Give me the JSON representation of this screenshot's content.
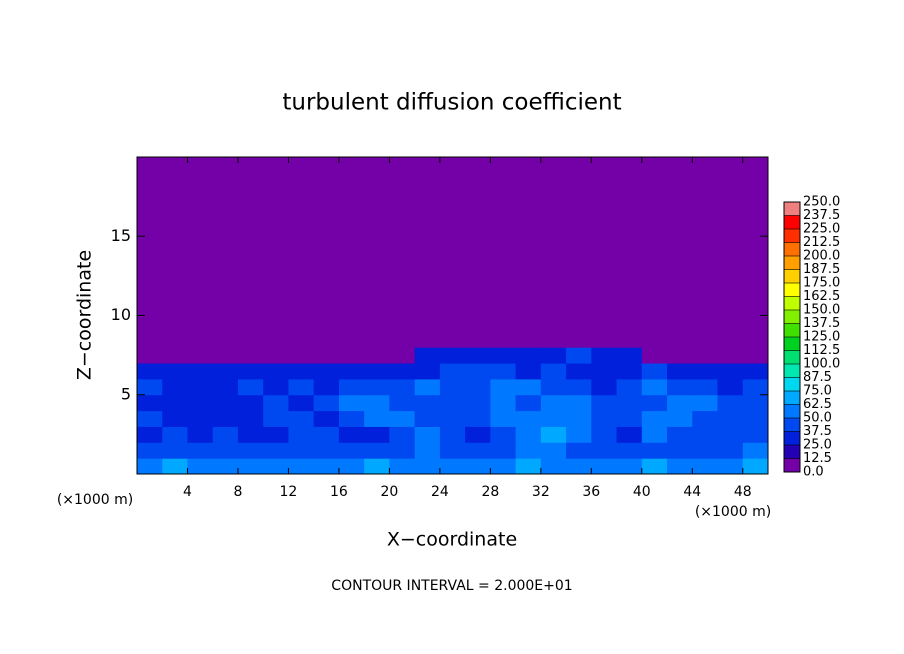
{
  "chart_data": {
    "type": "heatmap",
    "title": "turbulent diffusion coefficient",
    "x_label": "X−coordinate",
    "y_label": "Z−coordinate",
    "x_unit_left": "(×1000 m)",
    "x_unit_right": "(×1000 m)",
    "footer": "CONTOUR INTERVAL = 2.000E+01",
    "xlim": [
      0,
      50
    ],
    "ylim": [
      0,
      20
    ],
    "xticks": [
      4,
      8,
      12,
      16,
      20,
      24,
      28,
      32,
      36,
      40,
      44,
      48
    ],
    "yticks": [
      5,
      10,
      15
    ],
    "x_edges": [
      0,
      2,
      4,
      6,
      8,
      10,
      12,
      14,
      16,
      18,
      20,
      22,
      24,
      26,
      28,
      30,
      32,
      34,
      36,
      38,
      40,
      42,
      44,
      46,
      48,
      50
    ],
    "z_edges": [
      0,
      1,
      2,
      3,
      4,
      5,
      6,
      7,
      8,
      20
    ],
    "z": [
      [
        60,
        65,
        60,
        60,
        55,
        60,
        60,
        55,
        60,
        65,
        60,
        60,
        55,
        60,
        60,
        65,
        60,
        55,
        60,
        60,
        65,
        60,
        60,
        60,
        65
      ],
      [
        40,
        45,
        40,
        45,
        40,
        45,
        45,
        40,
        45,
        40,
        45,
        50,
        45,
        40,
        45,
        50,
        55,
        45,
        45,
        40,
        45,
        45,
        40,
        45,
        50
      ],
      [
        35,
        40,
        35,
        40,
        30,
        35,
        40,
        45,
        35,
        35,
        45,
        50,
        40,
        35,
        45,
        60,
        65,
        55,
        40,
        35,
        50,
        45,
        40,
        45,
        45
      ],
      [
        40,
        35,
        30,
        35,
        35,
        40,
        45,
        35,
        45,
        50,
        55,
        45,
        40,
        40,
        50,
        55,
        60,
        60,
        45,
        40,
        55,
        50,
        40,
        40,
        45
      ],
      [
        35,
        30,
        35,
        30,
        35,
        40,
        35,
        45,
        50,
        55,
        45,
        40,
        45,
        40,
        50,
        45,
        55,
        50,
        40,
        40,
        45,
        55,
        50,
        40,
        40
      ],
      [
        40,
        35,
        30,
        35,
        40,
        35,
        40,
        35,
        45,
        40,
        45,
        50,
        45,
        40,
        50,
        55,
        45,
        40,
        35,
        40,
        50,
        45,
        40,
        35,
        40
      ],
      [
        35,
        30,
        35,
        30,
        35,
        30,
        35,
        30,
        35,
        30,
        35,
        35,
        40,
        45,
        40,
        35,
        40,
        35,
        30,
        35,
        40,
        35,
        30,
        35,
        30
      ],
      [
        0,
        0,
        0,
        0,
        0,
        0,
        0,
        0,
        0,
        0,
        0,
        30,
        35,
        35,
        30,
        35,
        35,
        40,
        35,
        30,
        0,
        0,
        0,
        0,
        0
      ],
      [
        0,
        0,
        0,
        0,
        0,
        0,
        0,
        0,
        0,
        0,
        0,
        0,
        0,
        0,
        0,
        0,
        0,
        0,
        0,
        0,
        0,
        0,
        0,
        0,
        0
      ]
    ],
    "colorbar_ticks": [
      {
        "value": 0,
        "label": "0.0"
      },
      {
        "value": 12.5,
        "label": "12.5"
      },
      {
        "value": 25,
        "label": "25.0"
      },
      {
        "value": 37.5,
        "label": "37.5"
      },
      {
        "value": 50,
        "label": "50.0"
      },
      {
        "value": 62.5,
        "label": "62.5"
      },
      {
        "value": 75,
        "label": "75.0"
      },
      {
        "value": 87.5,
        "label": "87.5"
      },
      {
        "value": 100,
        "label": "100.0"
      },
      {
        "value": 112.5,
        "label": "112.5"
      },
      {
        "value": 125,
        "label": "125.0"
      },
      {
        "value": 137.5,
        "label": "137.5"
      },
      {
        "value": 150,
        "label": "150.0"
      },
      {
        "value": 162.5,
        "label": "162.5"
      },
      {
        "value": 175,
        "label": "175.0"
      },
      {
        "value": 187.5,
        "label": "187.5"
      },
      {
        "value": 200,
        "label": "200.0"
      },
      {
        "value": 212.5,
        "label": "212.5"
      },
      {
        "value": 225,
        "label": "225.0"
      },
      {
        "value": 237.5,
        "label": "237.5"
      },
      {
        "value": 250,
        "label": "250.0"
      }
    ],
    "colors": [
      "#7400a8",
      "#2400b4",
      "#0020dc",
      "#0048f0",
      "#0078ff",
      "#00a8ff",
      "#00d8f0",
      "#00e8b0",
      "#00e070",
      "#00d020",
      "#40e000",
      "#80f000",
      "#c0ff00",
      "#ffff00",
      "#ffd000",
      "#ffa000",
      "#ff7000",
      "#ff3000",
      "#ff0000",
      "#f08080"
    ]
  }
}
